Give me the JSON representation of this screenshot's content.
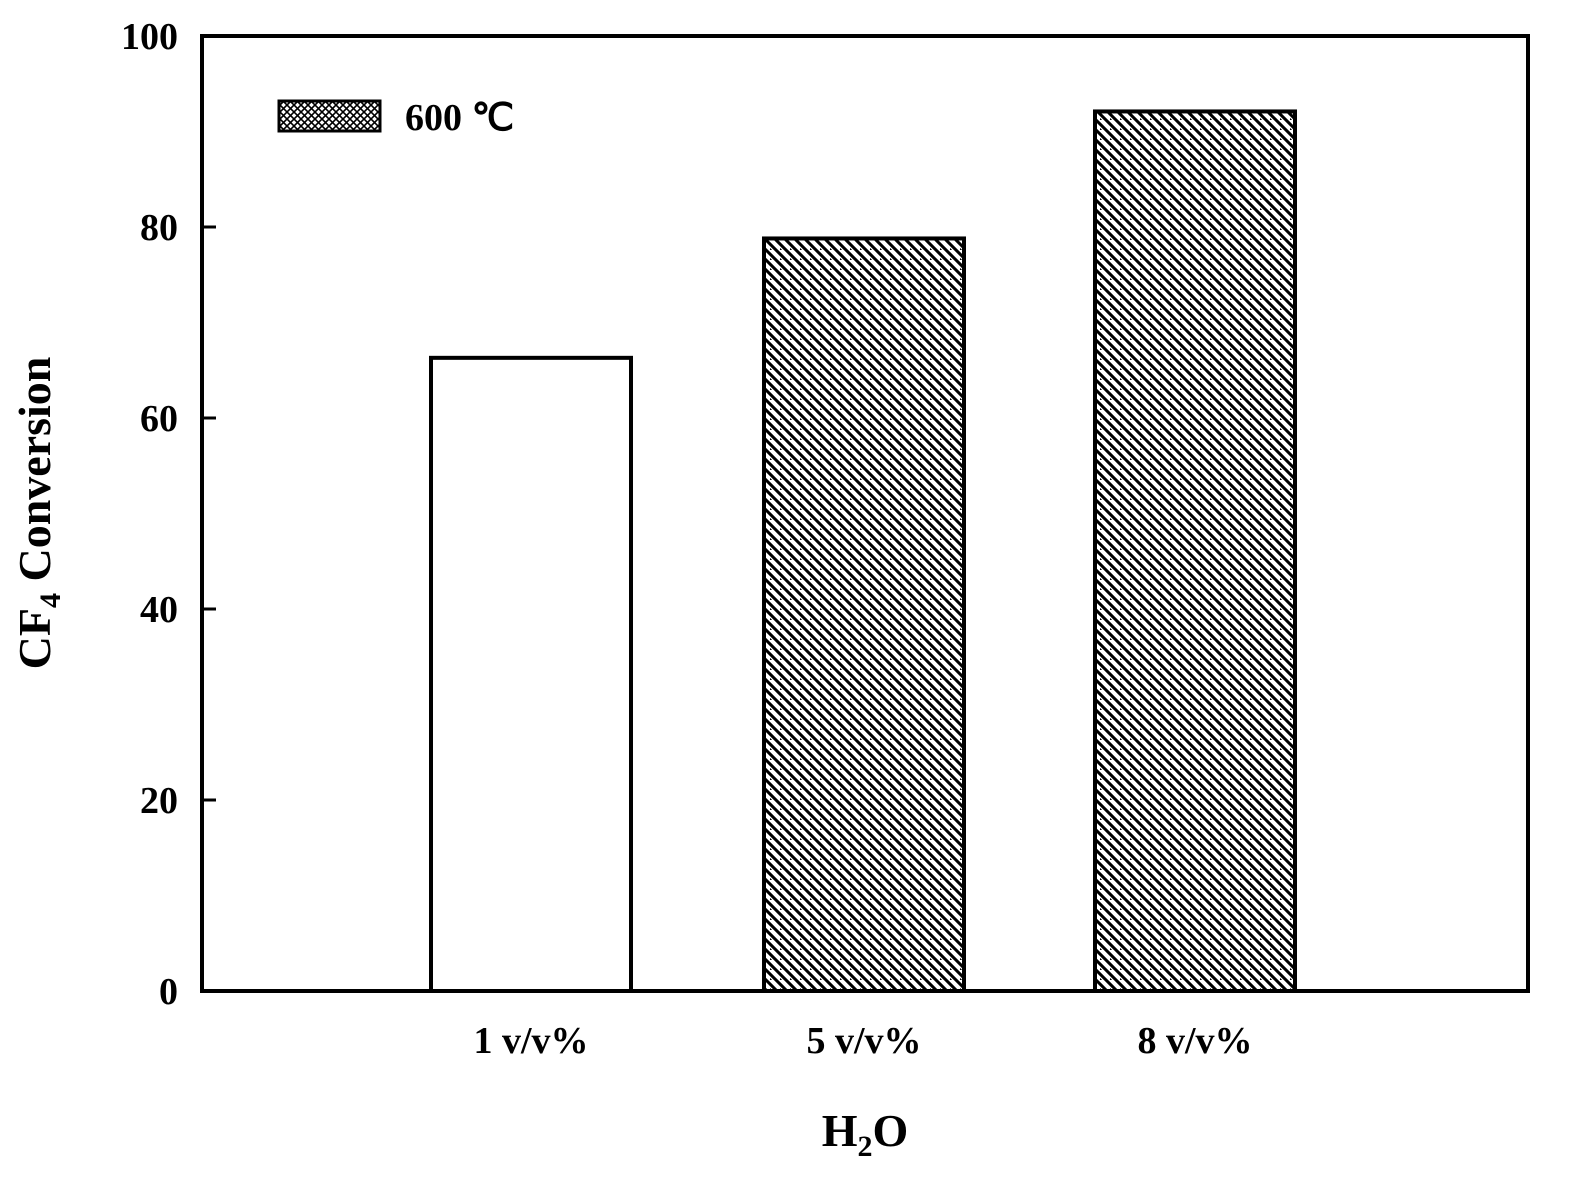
{
  "chart_data": {
    "type": "bar",
    "categories": [
      "1 v/v%",
      "5 v/v%",
      "8 v/v%"
    ],
    "series": [
      {
        "name": "600 ℃",
        "values": [
          66.3,
          78.8,
          92.1
        ]
      }
    ],
    "bar_patterns": [
      "none",
      "diagonal",
      "diagonal"
    ],
    "legend_pattern": "crosshatch",
    "xlabel": {
      "main": "H",
      "sub": "2",
      "tail": "O"
    },
    "ylabel": {
      "main": "CF",
      "sub": "4",
      "tail": " Conversion"
    },
    "yticks": [
      0,
      20,
      40,
      60,
      80,
      100
    ],
    "ylim": [
      0,
      100
    ],
    "legend_position": "top-left",
    "grid": false
  }
}
